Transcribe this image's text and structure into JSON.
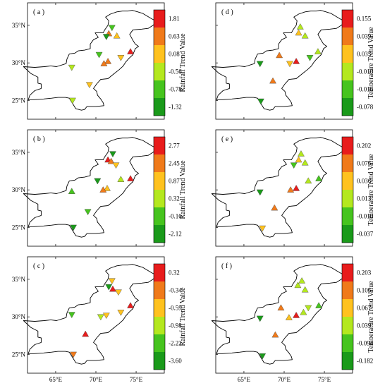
{
  "colors": [
    "#1a9a1a",
    "#46c41e",
    "#b4e81e",
    "#ffc21e",
    "#f07a1a",
    "#e81c1c"
  ],
  "panels": [
    {
      "label": "( a )",
      "colorbar_title": "Rainfall Trend Value",
      "colorbar_ticks": [
        "-1.32",
        "-0.78",
        "-0.56",
        "0.08",
        "0.63",
        "1.81"
      ],
      "show_y_ticks": true,
      "show_x_ticks": false,
      "stations": [
        {
          "lon": 72.0,
          "lat": 34.7,
          "dir": "down",
          "c": 1
        },
        {
          "lon": 71.6,
          "lat": 33.9,
          "dir": "up",
          "c": 4
        },
        {
          "lon": 71.3,
          "lat": 33.5,
          "dir": "down",
          "c": 0
        },
        {
          "lon": 72.6,
          "lat": 33.6,
          "dir": "up",
          "c": 3
        },
        {
          "lon": 74.3,
          "lat": 31.5,
          "dir": "up",
          "c": 5
        },
        {
          "lon": 70.4,
          "lat": 31.1,
          "dir": "down",
          "c": 1
        },
        {
          "lon": 71.5,
          "lat": 30.2,
          "dir": "up",
          "c": 4
        },
        {
          "lon": 71.0,
          "lat": 29.9,
          "dir": "up",
          "c": 4
        },
        {
          "lon": 73.1,
          "lat": 30.7,
          "dir": "down",
          "c": 3
        },
        {
          "lon": 67.0,
          "lat": 29.4,
          "dir": "down",
          "c": 2
        },
        {
          "lon": 69.2,
          "lat": 27.1,
          "dir": "down",
          "c": 3
        },
        {
          "lon": 67.1,
          "lat": 25.0,
          "dir": "down",
          "c": 2
        }
      ]
    },
    {
      "label": "( d )",
      "colorbar_title": "Temperature Trend Value",
      "colorbar_ticks": [
        "-0.078",
        "-0.016",
        "-0.010",
        "0.035",
        "0.039",
        "0.155"
      ],
      "show_y_ticks": false,
      "show_x_ticks": false,
      "stations": [
        {
          "lon": 72.0,
          "lat": 34.8,
          "dir": "up",
          "c": 2
        },
        {
          "lon": 71.8,
          "lat": 34.0,
          "dir": "up",
          "c": 3
        },
        {
          "lon": 72.6,
          "lat": 33.6,
          "dir": "up",
          "c": 2
        },
        {
          "lon": 74.2,
          "lat": 31.5,
          "dir": "up",
          "c": 2
        },
        {
          "lon": 73.2,
          "lat": 30.7,
          "dir": "down",
          "c": 1
        },
        {
          "lon": 69.4,
          "lat": 31.0,
          "dir": "up",
          "c": 4
        },
        {
          "lon": 71.5,
          "lat": 30.2,
          "dir": "up",
          "c": 5
        },
        {
          "lon": 70.7,
          "lat": 29.9,
          "dir": "down",
          "c": 3
        },
        {
          "lon": 67.0,
          "lat": 29.9,
          "dir": "down",
          "c": 0
        },
        {
          "lon": 68.6,
          "lat": 27.6,
          "dir": "up",
          "c": 4
        },
        {
          "lon": 67.1,
          "lat": 24.9,
          "dir": "down",
          "c": 0
        }
      ]
    },
    {
      "label": "( b )",
      "colorbar_title": "Rainfall Trend Value",
      "colorbar_ticks": [
        "-2.12",
        "-0.10",
        "0.32",
        "0.87",
        "2.45",
        "2.77"
      ],
      "show_y_ticks": true,
      "show_x_ticks": false,
      "stations": [
        {
          "lon": 72.1,
          "lat": 34.8,
          "dir": "down",
          "c": 0
        },
        {
          "lon": 71.5,
          "lat": 34.0,
          "dir": "up",
          "c": 5
        },
        {
          "lon": 71.9,
          "lat": 33.8,
          "dir": "up",
          "c": 4
        },
        {
          "lon": 72.5,
          "lat": 33.3,
          "dir": "down",
          "c": 3
        },
        {
          "lon": 74.3,
          "lat": 31.5,
          "dir": "up",
          "c": 5
        },
        {
          "lon": 73.1,
          "lat": 31.4,
          "dir": "up",
          "c": 2
        },
        {
          "lon": 70.2,
          "lat": 31.2,
          "dir": "down",
          "c": 0
        },
        {
          "lon": 71.4,
          "lat": 30.2,
          "dir": "up",
          "c": 3
        },
        {
          "lon": 70.9,
          "lat": 30.0,
          "dir": "up",
          "c": 4
        },
        {
          "lon": 67.0,
          "lat": 29.8,
          "dir": "up",
          "c": 1
        },
        {
          "lon": 69.0,
          "lat": 27.1,
          "dir": "down",
          "c": 1
        },
        {
          "lon": 67.2,
          "lat": 25.0,
          "dir": "down",
          "c": 0
        }
      ]
    },
    {
      "label": "( e )",
      "colorbar_title": "Temperature Trend Value",
      "colorbar_ticks": [
        "-0.037",
        "-0.010",
        "0.013",
        "0.036",
        "0.076",
        "0.202"
      ],
      "show_y_ticks": false,
      "show_x_ticks": false,
      "stations": [
        {
          "lon": 72.1,
          "lat": 34.8,
          "dir": "up",
          "c": 2
        },
        {
          "lon": 71.8,
          "lat": 34.0,
          "dir": "up",
          "c": 3
        },
        {
          "lon": 72.6,
          "lat": 33.6,
          "dir": "up",
          "c": 2
        },
        {
          "lon": 71.2,
          "lat": 33.3,
          "dir": "down",
          "c": 1
        },
        {
          "lon": 74.3,
          "lat": 31.5,
          "dir": "up",
          "c": 1
        },
        {
          "lon": 73.0,
          "lat": 31.2,
          "dir": "up",
          "c": 2
        },
        {
          "lon": 71.5,
          "lat": 30.2,
          "dir": "up",
          "c": 5
        },
        {
          "lon": 70.8,
          "lat": 30.0,
          "dir": "up",
          "c": 4
        },
        {
          "lon": 67.0,
          "lat": 29.7,
          "dir": "down",
          "c": 0
        },
        {
          "lon": 68.8,
          "lat": 27.6,
          "dir": "up",
          "c": 4
        },
        {
          "lon": 67.3,
          "lat": 24.9,
          "dir": "down",
          "c": 3
        }
      ]
    },
    {
      "label": "( c )",
      "colorbar_title": "Rainfall Trend Value",
      "colorbar_ticks": [
        "-3.60",
        "-2.22",
        "-0.98",
        "-0.59",
        "-0.34",
        "0.32"
      ],
      "show_y_ticks": true,
      "show_x_ticks": true,
      "stations": [
        {
          "lon": 72.0,
          "lat": 34.8,
          "dir": "down",
          "c": 3
        },
        {
          "lon": 71.6,
          "lat": 34.0,
          "dir": "down",
          "c": 0
        },
        {
          "lon": 72.1,
          "lat": 33.7,
          "dir": "up",
          "c": 5
        },
        {
          "lon": 72.8,
          "lat": 33.3,
          "dir": "down",
          "c": 3
        },
        {
          "lon": 74.3,
          "lat": 31.5,
          "dir": "up",
          "c": 5
        },
        {
          "lon": 73.1,
          "lat": 30.6,
          "dir": "down",
          "c": 3
        },
        {
          "lon": 71.3,
          "lat": 30.2,
          "dir": "down",
          "c": 3
        },
        {
          "lon": 70.6,
          "lat": 30.0,
          "dir": "down",
          "c": 2
        },
        {
          "lon": 67.0,
          "lat": 30.3,
          "dir": "down",
          "c": 1
        },
        {
          "lon": 68.7,
          "lat": 27.7,
          "dir": "up",
          "c": 5
        },
        {
          "lon": 67.2,
          "lat": 25.0,
          "dir": "down",
          "c": 4
        }
      ]
    },
    {
      "label": "( f )",
      "colorbar_title": "Temperature Trend Value",
      "colorbar_ticks": [
        "-0.182",
        "-0.094",
        "0.039",
        "0.067",
        "0.106",
        "0.203"
      ],
      "show_y_ticks": false,
      "show_x_ticks": true,
      "stations": [
        {
          "lon": 72.2,
          "lat": 34.8,
          "dir": "up",
          "c": 2
        },
        {
          "lon": 71.7,
          "lat": 34.2,
          "dir": "up",
          "c": 2
        },
        {
          "lon": 72.6,
          "lat": 33.6,
          "dir": "up",
          "c": 2
        },
        {
          "lon": 74.3,
          "lat": 31.5,
          "dir": "up",
          "c": 1
        },
        {
          "lon": 73.0,
          "lat": 31.2,
          "dir": "down",
          "c": 2
        },
        {
          "lon": 72.4,
          "lat": 30.6,
          "dir": "up",
          "c": 2
        },
        {
          "lon": 69.6,
          "lat": 31.2,
          "dir": "up",
          "c": 4
        },
        {
          "lon": 71.5,
          "lat": 30.2,
          "dir": "up",
          "c": 5
        },
        {
          "lon": 70.6,
          "lat": 29.9,
          "dir": "up",
          "c": 3
        },
        {
          "lon": 67.0,
          "lat": 29.8,
          "dir": "down",
          "c": 0
        },
        {
          "lon": 68.9,
          "lat": 27.6,
          "dir": "up",
          "c": 4
        },
        {
          "lon": 67.3,
          "lat": 24.8,
          "dir": "down",
          "c": 0
        }
      ]
    }
  ],
  "axes": {
    "lon_range": [
      61.5,
      78.5
    ],
    "lat_range": [
      22.5,
      38.0
    ],
    "x_ticks": [
      "65°E",
      "70°E",
      "75°E"
    ],
    "y_ticks": [
      "35°N",
      "30°N",
      "25°N"
    ]
  }
}
